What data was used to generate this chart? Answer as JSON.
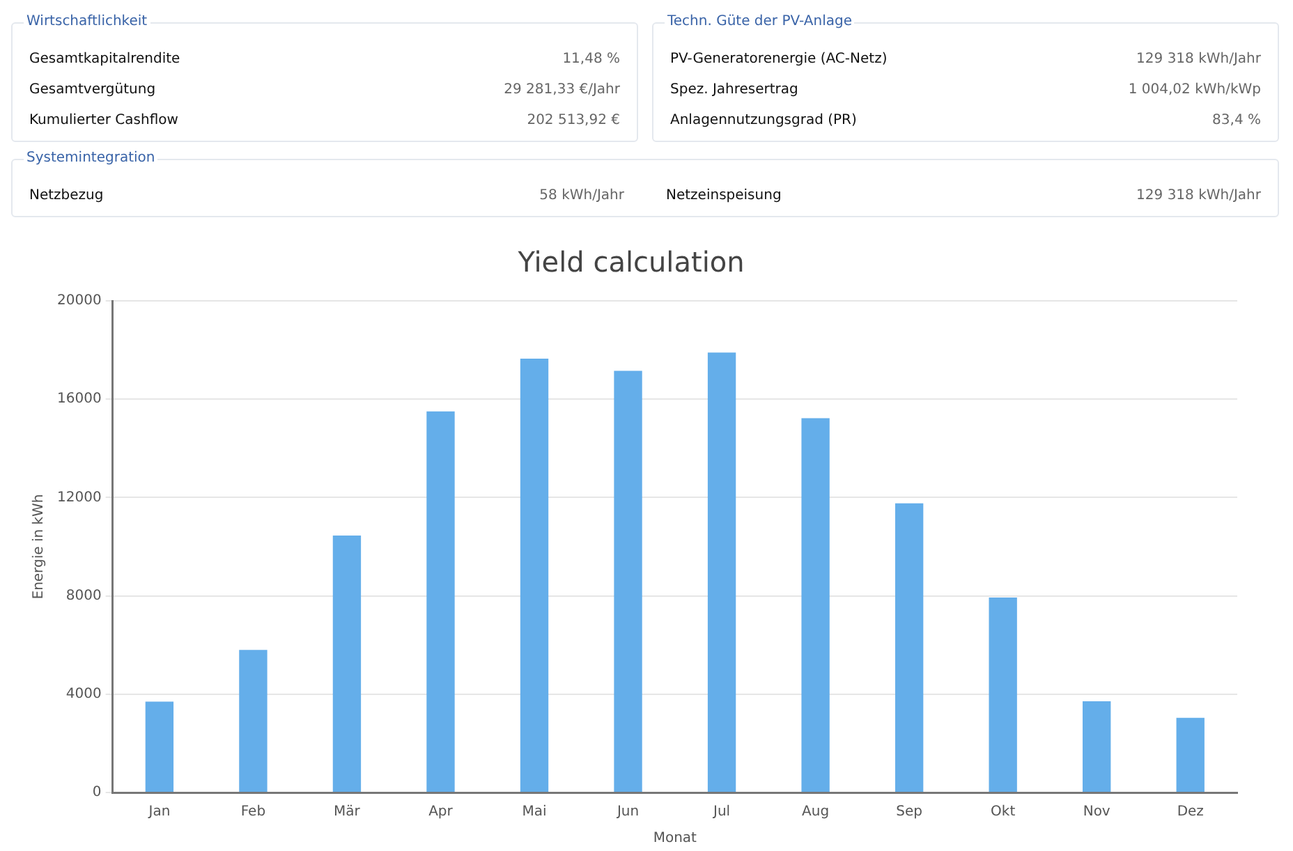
{
  "chart_data": [
    {
      "type": "other",
      "title": "Wirtschaftlichkeit",
      "annotations": [
        "Gesamtkapitalrendite",
        "11,48 %",
        "Gesamtvergütung",
        "29 281,33 €/Jahr",
        "Kumulierter Cashflow",
        "202 513,92 €"
      ]
    },
    {
      "type": "other",
      "title": "Techn. Güte der PV-Anlage",
      "annotations": [
        "PV-Generatorenergie (AC-Netz)",
        "129 318 kWh/Jahr",
        "Spez. Jahresertrag",
        "1 004,02 kWh/kWp",
        "Anlagennutzungsgrad (PR)",
        "83,4 %"
      ]
    },
    {
      "type": "other",
      "title": "Systemintegration",
      "annotations": [
        "Netzbezug",
        "58 kWh/Jahr",
        "Netzeinspeisung",
        "129 318 kWh/Jahr"
      ]
    },
    {
      "type": "bar",
      "title": "Yield calculation",
      "xlabel": "Monat",
      "ylabel": "Energie in kWh",
      "categories": [
        "Jan",
        "Feb",
        "Mär",
        "Apr",
        "Mai",
        "Jun",
        "Jul",
        "Aug",
        "Sep",
        "Okt",
        "Nov",
        "Dez"
      ],
      "values": [
        3700,
        5800,
        10450,
        15500,
        17650,
        17150,
        17900,
        15230,
        11760,
        7930,
        3710,
        3040
      ],
      "color": "#64aeea",
      "ylim": [
        0,
        20000
      ],
      "yticks": [
        0,
        4000,
        8000,
        12000,
        16000,
        20000
      ],
      "grid": "y",
      "legend": false
    }
  ]
}
